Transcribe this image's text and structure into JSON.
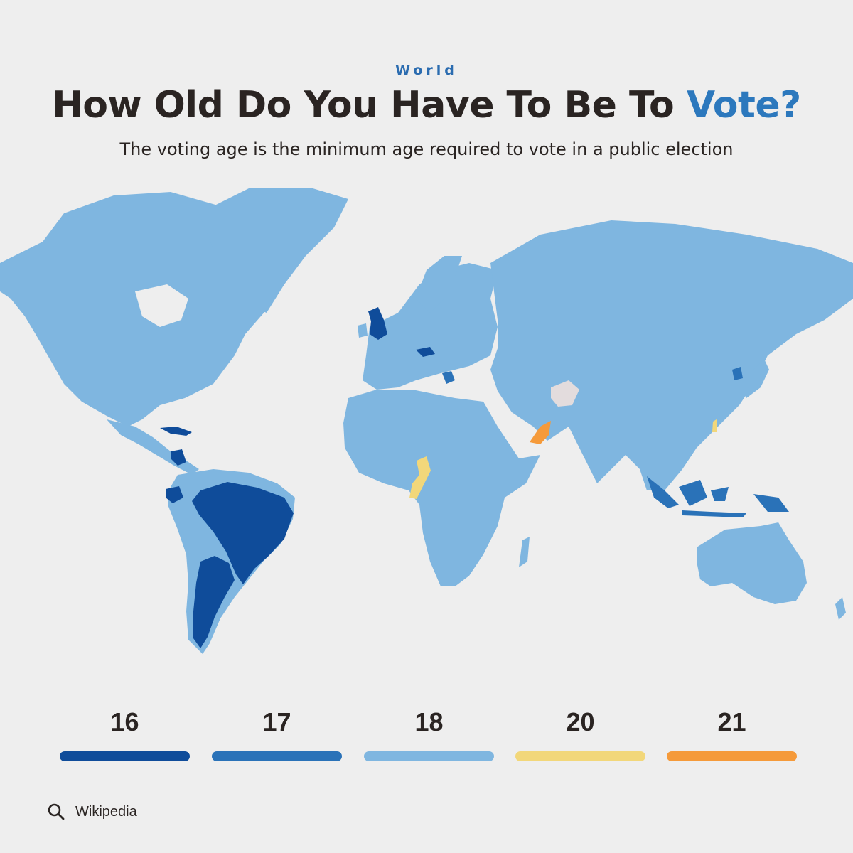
{
  "header": {
    "kicker": "World",
    "title_main": "How Old Do You Have To Be To ",
    "title_accent": "Vote?",
    "subtitle": "The voting age is the minimum age required to vote in a public election"
  },
  "colors": {
    "age_16": "#0f4c9a",
    "age_17": "#2a72b8",
    "age_18": "#7fb6e0",
    "age_20": "#f2d77a",
    "age_21": "#f59a3a",
    "no_data": "#e3dcdd",
    "background": "#eeeeee",
    "accent": "#2c78bd"
  },
  "legend": [
    {
      "label": "16",
      "color_key": "age_16"
    },
    {
      "label": "17",
      "color_key": "age_17"
    },
    {
      "label": "18",
      "color_key": "age_18"
    },
    {
      "label": "20",
      "color_key": "age_20"
    },
    {
      "label": "21",
      "color_key": "age_21"
    }
  ],
  "map_regions": [
    {
      "region": "North America",
      "voting_age": "18"
    },
    {
      "region": "Greenland",
      "voting_age": "18"
    },
    {
      "region": "Cuba",
      "voting_age": "16"
    },
    {
      "region": "Nicaragua",
      "voting_age": "16"
    },
    {
      "region": "Ecuador",
      "voting_age": "16"
    },
    {
      "region": "Brazil",
      "voting_age": "16"
    },
    {
      "region": "Argentina",
      "voting_age": "16"
    },
    {
      "region": "Europe",
      "voting_age": "18"
    },
    {
      "region": "Scotland / Wales",
      "voting_age": "16"
    },
    {
      "region": "Austria",
      "voting_age": "16"
    },
    {
      "region": "Greece",
      "voting_age": "17"
    },
    {
      "region": "Africa",
      "voting_age": "18"
    },
    {
      "region": "Cameroon",
      "voting_age": "20"
    },
    {
      "region": "Asia",
      "voting_age": "18"
    },
    {
      "region": "Oman",
      "voting_age": "21"
    },
    {
      "region": "North Korea",
      "voting_age": "17"
    },
    {
      "region": "Indonesia",
      "voting_age": "17"
    },
    {
      "region": "Taiwan",
      "voting_age": "20"
    },
    {
      "region": "Afghanistan",
      "voting_age": "no data"
    },
    {
      "region": "Australia",
      "voting_age": "18"
    }
  ],
  "source": {
    "label": "Wikipedia",
    "icon": "search-icon"
  }
}
